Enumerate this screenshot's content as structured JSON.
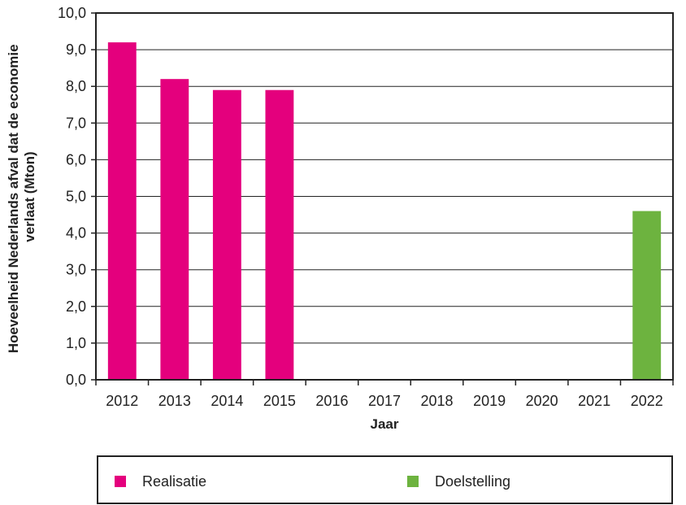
{
  "chart_data": {
    "type": "bar",
    "xlabel": "Jaar",
    "ylabel": "Hoeveelheid Nederlands afval dat de economie verlaat (Mton)",
    "ylim": [
      0,
      10
    ],
    "ytick_step": 1,
    "categories": [
      "2012",
      "2013",
      "2014",
      "2015",
      "2016",
      "2017",
      "2018",
      "2019",
      "2020",
      "2021",
      "2022"
    ],
    "y_tick_labels": [
      "0,0",
      "1,0",
      "2,0",
      "3,0",
      "4,0",
      "5,0",
      "6,0",
      "7,0",
      "8,0",
      "9,0",
      "10,0"
    ],
    "grid": true,
    "legend_position": "bottom",
    "series": [
      {
        "name": "Realisatie",
        "color": "#e4007d",
        "values": [
          9.2,
          8.2,
          7.9,
          7.9,
          null,
          null,
          null,
          null,
          null,
          null,
          null
        ]
      },
      {
        "name": "Doelstelling",
        "color": "#6db33f",
        "values": [
          null,
          null,
          null,
          null,
          null,
          null,
          null,
          null,
          null,
          null,
          4.6
        ]
      }
    ]
  }
}
